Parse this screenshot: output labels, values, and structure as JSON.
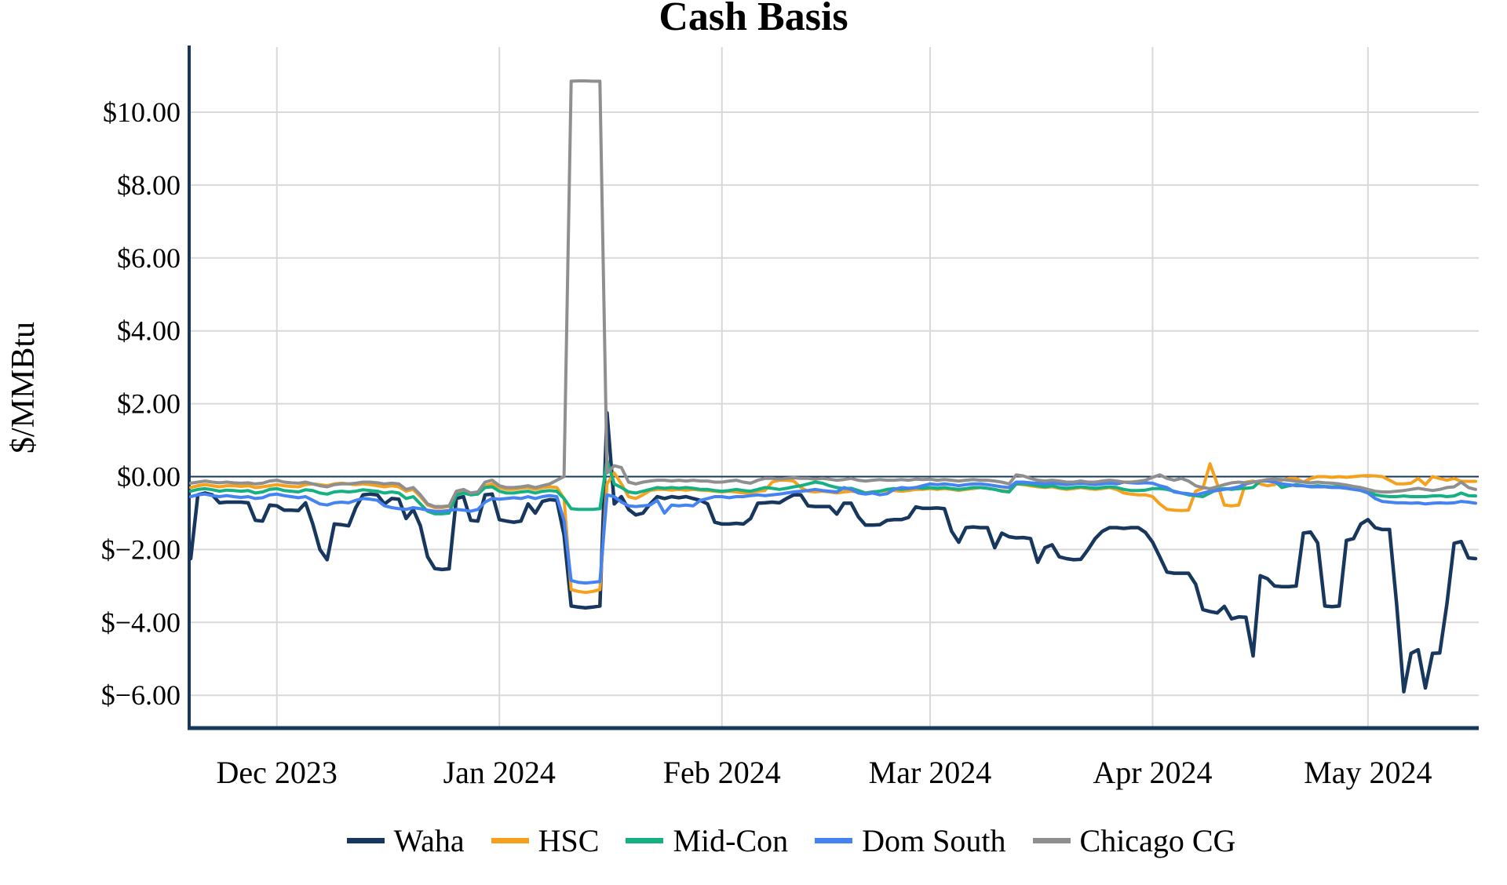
{
  "title": "Cash Basis",
  "colors": {
    "background": "#ffffff",
    "axis": "#17375e",
    "zero_line": "#17375e",
    "grid": "#d9d9d9",
    "text": "#000000"
  },
  "chart_data": {
    "type": "line",
    "title": "Cash Basis",
    "xlabel": "",
    "ylabel": "$/MMBtu",
    "grid": true,
    "legend_position": "bottom",
    "x_axis": {
      "tick_labels": [
        "Dec 2023",
        "Jan 2024",
        "Feb 2024",
        "Mar 2024",
        "Apr 2024",
        "May 2024"
      ],
      "tick_days": [
        12,
        43,
        74,
        103,
        134,
        164
      ],
      "range_days": [
        0,
        179
      ]
    },
    "y_axis": {
      "tick_values": [
        10,
        8,
        6,
        4,
        2,
        0,
        -2,
        -4,
        -6
      ],
      "tick_labels": [
        "$10.00",
        "$8.00",
        "$6.00",
        "$4.00",
        "$2.00",
        "$0.00",
        "$−2.00",
        "$−4.00",
        "$−6.00"
      ],
      "range": [
        -6.9,
        11.8
      ]
    },
    "series": [
      {
        "name": "Waha",
        "color": "#17375e",
        "values": [
          -2.25,
          -0.5,
          -0.45,
          -0.5,
          -0.72,
          -0.7,
          -0.7,
          -0.7,
          -0.72,
          -1.2,
          -1.22,
          -0.78,
          -0.8,
          -0.92,
          -0.92,
          -0.93,
          -0.72,
          -1.3,
          -2.0,
          -2.28,
          -1.3,
          -1.32,
          -1.35,
          -0.85,
          -0.5,
          -0.48,
          -0.5,
          -0.75,
          -0.6,
          -0.62,
          -1.15,
          -0.9,
          -1.35,
          -2.2,
          -2.52,
          -2.55,
          -2.53,
          -0.6,
          -0.55,
          -1.2,
          -1.22,
          -0.5,
          -0.48,
          -1.18,
          -1.22,
          -1.25,
          -1.22,
          -0.75,
          -1.0,
          -0.68,
          -0.63,
          -0.65,
          -1.6,
          -3.55,
          -3.58,
          -3.6,
          -3.58,
          -3.55,
          1.75,
          -0.75,
          -0.55,
          -0.9,
          -1.05,
          -1.0,
          -0.75,
          -0.55,
          -0.6,
          -0.55,
          -0.58,
          -0.55,
          -0.6,
          -0.65,
          -0.75,
          -1.25,
          -1.3,
          -1.3,
          -1.28,
          -1.3,
          -1.15,
          -0.73,
          -0.72,
          -0.7,
          -0.72,
          -0.6,
          -0.5,
          -0.5,
          -0.8,
          -0.82,
          -0.82,
          -0.82,
          -1.03,
          -0.73,
          -0.73,
          -1.1,
          -1.33,
          -1.33,
          -1.32,
          -1.2,
          -1.18,
          -1.18,
          -1.12,
          -0.83,
          -0.87,
          -0.87,
          -0.86,
          -0.88,
          -1.5,
          -1.8,
          -1.4,
          -1.38,
          -1.4,
          -1.4,
          -1.95,
          -1.55,
          -1.65,
          -1.68,
          -1.67,
          -1.7,
          -2.35,
          -1.95,
          -1.87,
          -2.2,
          -2.25,
          -2.28,
          -2.27,
          -2.0,
          -1.7,
          -1.5,
          -1.4,
          -1.4,
          -1.42,
          -1.4,
          -1.4,
          -1.53,
          -1.8,
          -2.2,
          -2.62,
          -2.65,
          -2.65,
          -2.65,
          -2.95,
          -3.65,
          -3.7,
          -3.74,
          -3.56,
          -3.9,
          -3.85,
          -3.86,
          -4.92,
          -2.72,
          -2.8,
          -3.0,
          -3.02,
          -3.02,
          -3.0,
          -1.55,
          -1.52,
          -1.82,
          -3.55,
          -3.57,
          -3.55,
          -1.75,
          -1.7,
          -1.3,
          -1.18,
          -1.4,
          -1.45,
          -1.45,
          -3.5,
          -5.9,
          -4.85,
          -4.75,
          -5.8,
          -4.85,
          -4.84,
          -3.5,
          -1.83,
          -1.78,
          -2.23,
          -2.25
        ]
      },
      {
        "name": "HSC",
        "color": "#f5a11e",
        "values": [
          -0.3,
          -0.25,
          -0.22,
          -0.25,
          -0.28,
          -0.25,
          -0.25,
          -0.27,
          -0.25,
          -0.3,
          -0.28,
          -0.25,
          -0.22,
          -0.25,
          -0.27,
          -0.28,
          -0.22,
          -0.2,
          -0.22,
          -0.25,
          -0.2,
          -0.18,
          -0.2,
          -0.22,
          -0.2,
          -0.22,
          -0.25,
          -0.28,
          -0.25,
          -0.28,
          -0.4,
          -0.35,
          -0.55,
          -0.78,
          -0.85,
          -0.85,
          -0.82,
          -0.45,
          -0.4,
          -0.5,
          -0.45,
          -0.25,
          -0.2,
          -0.3,
          -0.35,
          -0.35,
          -0.32,
          -0.3,
          -0.35,
          -0.3,
          -0.28,
          -0.3,
          -0.6,
          -3.1,
          -3.15,
          -3.18,
          -3.15,
          -3.1,
          -0.2,
          0.1,
          -0.2,
          -0.55,
          -0.6,
          -0.5,
          -0.38,
          -0.35,
          -0.35,
          -0.37,
          -0.35,
          -0.37,
          -0.35,
          -0.37,
          -0.38,
          -0.4,
          -0.42,
          -0.4,
          -0.42,
          -0.45,
          -0.45,
          -0.4,
          -0.38,
          -0.15,
          -0.1,
          -0.1,
          -0.12,
          -0.3,
          -0.4,
          -0.42,
          -0.4,
          -0.42,
          -0.45,
          -0.42,
          -0.4,
          -0.42,
          -0.45,
          -0.42,
          -0.4,
          -0.38,
          -0.38,
          -0.4,
          -0.38,
          -0.35,
          -0.35,
          -0.33,
          -0.35,
          -0.33,
          -0.35,
          -0.38,
          -0.35,
          -0.33,
          -0.3,
          -0.32,
          -0.35,
          -0.38,
          -0.4,
          -0.2,
          -0.22,
          -0.25,
          -0.28,
          -0.3,
          -0.28,
          -0.32,
          -0.35,
          -0.33,
          -0.3,
          -0.33,
          -0.35,
          -0.33,
          -0.3,
          -0.35,
          -0.45,
          -0.48,
          -0.5,
          -0.5,
          -0.55,
          -0.75,
          -0.9,
          -0.92,
          -0.93,
          -0.92,
          -0.4,
          -0.32,
          0.35,
          -0.2,
          -0.78,
          -0.8,
          -0.78,
          -0.15,
          -0.12,
          -0.2,
          -0.25,
          -0.22,
          -0.1,
          -0.05,
          -0.05,
          -0.15,
          -0.05,
          0.0,
          0.0,
          -0.02,
          0.0,
          -0.02,
          0.0,
          0.02,
          0.03,
          0.02,
          0.0,
          -0.1,
          -0.2,
          -0.2,
          -0.18,
          -0.05,
          -0.22,
          0.0,
          -0.05,
          -0.1,
          -0.05,
          -0.13,
          -0.13,
          -0.13
        ]
      },
      {
        "name": "Mid-Con",
        "color": "#16b183",
        "values": [
          -0.4,
          -0.35,
          -0.33,
          -0.36,
          -0.4,
          -0.37,
          -0.38,
          -0.4,
          -0.38,
          -0.45,
          -0.42,
          -0.35,
          -0.33,
          -0.38,
          -0.4,
          -0.42,
          -0.36,
          -0.38,
          -0.45,
          -0.48,
          -0.42,
          -0.4,
          -0.42,
          -0.4,
          -0.36,
          -0.38,
          -0.4,
          -0.45,
          -0.42,
          -0.45,
          -0.6,
          -0.55,
          -0.75,
          -0.95,
          -1.02,
          -1.02,
          -1.0,
          -0.5,
          -0.45,
          -0.5,
          -0.48,
          -0.3,
          -0.28,
          -0.4,
          -0.45,
          -0.45,
          -0.42,
          -0.4,
          -0.45,
          -0.4,
          -0.38,
          -0.4,
          -0.6,
          -0.88,
          -0.9,
          -0.9,
          -0.9,
          -0.88,
          0.45,
          -0.2,
          -0.3,
          -0.42,
          -0.45,
          -0.4,
          -0.35,
          -0.3,
          -0.32,
          -0.3,
          -0.32,
          -0.3,
          -0.32,
          -0.35,
          -0.35,
          -0.38,
          -0.4,
          -0.38,
          -0.35,
          -0.38,
          -0.4,
          -0.35,
          -0.3,
          -0.32,
          -0.35,
          -0.32,
          -0.28,
          -0.25,
          -0.2,
          -0.15,
          -0.18,
          -0.25,
          -0.3,
          -0.33,
          -0.32,
          -0.38,
          -0.45,
          -0.42,
          -0.4,
          -0.35,
          -0.33,
          -0.35,
          -0.33,
          -0.3,
          -0.32,
          -0.3,
          -0.32,
          -0.3,
          -0.33,
          -0.35,
          -0.33,
          -0.3,
          -0.3,
          -0.32,
          -0.35,
          -0.4,
          -0.42,
          -0.2,
          -0.2,
          -0.22,
          -0.25,
          -0.28,
          -0.25,
          -0.3,
          -0.32,
          -0.3,
          -0.28,
          -0.3,
          -0.32,
          -0.3,
          -0.28,
          -0.3,
          -0.35,
          -0.38,
          -0.38,
          -0.37,
          -0.33,
          -0.33,
          -0.35,
          -0.4,
          -0.45,
          -0.5,
          -0.52,
          -0.55,
          -0.45,
          -0.35,
          -0.33,
          -0.35,
          -0.33,
          -0.32,
          -0.3,
          -0.12,
          -0.1,
          -0.12,
          -0.3,
          -0.25,
          -0.22,
          -0.25,
          -0.27,
          -0.25,
          -0.27,
          -0.28,
          -0.27,
          -0.3,
          -0.33,
          -0.35,
          -0.4,
          -0.5,
          -0.53,
          -0.55,
          -0.55,
          -0.53,
          -0.55,
          -0.55,
          -0.55,
          -0.53,
          -0.52,
          -0.55,
          -0.53,
          -0.45,
          -0.52,
          -0.53
        ]
      },
      {
        "name": "Dom South",
        "color": "#4583f2",
        "values": [
          -0.55,
          -0.5,
          -0.48,
          -0.52,
          -0.55,
          -0.52,
          -0.55,
          -0.57,
          -0.55,
          -0.6,
          -0.58,
          -0.5,
          -0.48,
          -0.52,
          -0.55,
          -0.58,
          -0.55,
          -0.65,
          -0.75,
          -0.78,
          -0.72,
          -0.7,
          -0.72,
          -0.65,
          -0.6,
          -0.62,
          -0.65,
          -0.8,
          -0.85,
          -0.88,
          -0.9,
          -0.85,
          -0.88,
          -0.92,
          -0.95,
          -0.95,
          -0.93,
          -0.9,
          -0.92,
          -0.95,
          -0.9,
          -0.7,
          -0.6,
          -0.62,
          -0.6,
          -0.58,
          -0.6,
          -0.55,
          -0.6,
          -0.55,
          -0.52,
          -0.55,
          -1.2,
          -2.85,
          -2.9,
          -2.92,
          -2.9,
          -2.88,
          -0.5,
          -0.55,
          -0.7,
          -0.8,
          -0.82,
          -0.8,
          -0.78,
          -0.65,
          -1.0,
          -0.78,
          -0.8,
          -0.78,
          -0.8,
          -0.65,
          -0.6,
          -0.55,
          -0.55,
          -0.58,
          -0.55,
          -0.55,
          -0.52,
          -0.5,
          -0.52,
          -0.5,
          -0.48,
          -0.45,
          -0.42,
          -0.4,
          -0.38,
          -0.35,
          -0.38,
          -0.4,
          -0.42,
          -0.3,
          -0.35,
          -0.45,
          -0.48,
          -0.45,
          -0.5,
          -0.47,
          -0.35,
          -0.3,
          -0.32,
          -0.3,
          -0.25,
          -0.2,
          -0.22,
          -0.2,
          -0.22,
          -0.25,
          -0.22,
          -0.2,
          -0.2,
          -0.22,
          -0.25,
          -0.28,
          -0.3,
          -0.15,
          -0.15,
          -0.17,
          -0.18,
          -0.2,
          -0.17,
          -0.2,
          -0.22,
          -0.2,
          -0.18,
          -0.2,
          -0.22,
          -0.2,
          -0.18,
          -0.2,
          -0.15,
          -0.17,
          -0.18,
          -0.17,
          -0.18,
          -0.25,
          -0.3,
          -0.42,
          -0.45,
          -0.47,
          -0.5,
          -0.45,
          -0.4,
          -0.38,
          -0.35,
          -0.32,
          -0.28,
          -0.2,
          -0.15,
          -0.12,
          -0.12,
          -0.15,
          -0.2,
          -0.22,
          -0.25,
          -0.25,
          -0.28,
          -0.28,
          -0.28,
          -0.3,
          -0.3,
          -0.32,
          -0.35,
          -0.38,
          -0.45,
          -0.6,
          -0.68,
          -0.7,
          -0.72,
          -0.72,
          -0.73,
          -0.72,
          -0.75,
          -0.73,
          -0.72,
          -0.73,
          -0.72,
          -0.68,
          -0.7,
          -0.73
        ]
      },
      {
        "name": "Chicago CG",
        "color": "#8f8f8f",
        "values": [
          -0.18,
          -0.15,
          -0.12,
          -0.15,
          -0.17,
          -0.15,
          -0.17,
          -0.18,
          -0.17,
          -0.2,
          -0.18,
          -0.12,
          -0.1,
          -0.15,
          -0.17,
          -0.18,
          -0.15,
          -0.2,
          -0.25,
          -0.28,
          -0.22,
          -0.2,
          -0.2,
          -0.18,
          -0.15,
          -0.15,
          -0.17,
          -0.2,
          -0.18,
          -0.2,
          -0.35,
          -0.3,
          -0.5,
          -0.75,
          -0.82,
          -0.82,
          -0.8,
          -0.4,
          -0.35,
          -0.45,
          -0.42,
          -0.15,
          -0.1,
          -0.25,
          -0.3,
          -0.3,
          -0.28,
          -0.25,
          -0.3,
          -0.25,
          -0.2,
          -0.1,
          0.0,
          10.85,
          10.86,
          10.86,
          10.85,
          10.85,
          0.1,
          0.3,
          0.25,
          -0.15,
          -0.2,
          -0.15,
          -0.12,
          -0.1,
          -0.1,
          -0.12,
          -0.1,
          -0.12,
          -0.1,
          -0.12,
          -0.12,
          -0.15,
          -0.15,
          -0.12,
          -0.1,
          -0.15,
          -0.18,
          -0.1,
          -0.05,
          -0.05,
          -0.07,
          -0.05,
          -0.03,
          -0.05,
          -0.05,
          -0.07,
          -0.05,
          -0.07,
          -0.1,
          -0.08,
          -0.05,
          -0.1,
          -0.12,
          -0.1,
          -0.08,
          -0.1,
          -0.1,
          -0.08,
          -0.1,
          -0.07,
          -0.08,
          -0.07,
          -0.1,
          -0.08,
          -0.1,
          -0.12,
          -0.1,
          -0.08,
          -0.1,
          -0.1,
          -0.12,
          -0.15,
          -0.2,
          0.05,
          0.02,
          -0.05,
          -0.1,
          -0.12,
          -0.1,
          -0.12,
          -0.15,
          -0.15,
          -0.12,
          -0.15,
          -0.15,
          -0.12,
          -0.1,
          -0.12,
          -0.15,
          -0.15,
          -0.13,
          -0.1,
          -0.02,
          0.05,
          -0.05,
          -0.1,
          -0.05,
          -0.12,
          -0.25,
          -0.3,
          -0.33,
          -0.28,
          -0.22,
          -0.17,
          -0.15,
          -0.17,
          -0.15,
          -0.12,
          -0.08,
          -0.07,
          -0.08,
          -0.1,
          -0.13,
          -0.15,
          -0.17,
          -0.15,
          -0.17,
          -0.18,
          -0.2,
          -0.23,
          -0.27,
          -0.3,
          -0.35,
          -0.4,
          -0.42,
          -0.42,
          -0.4,
          -0.38,
          -0.35,
          -0.32,
          -0.35,
          -0.38,
          -0.35,
          -0.3,
          -0.28,
          -0.15,
          -0.3,
          -0.35
        ]
      }
    ]
  }
}
